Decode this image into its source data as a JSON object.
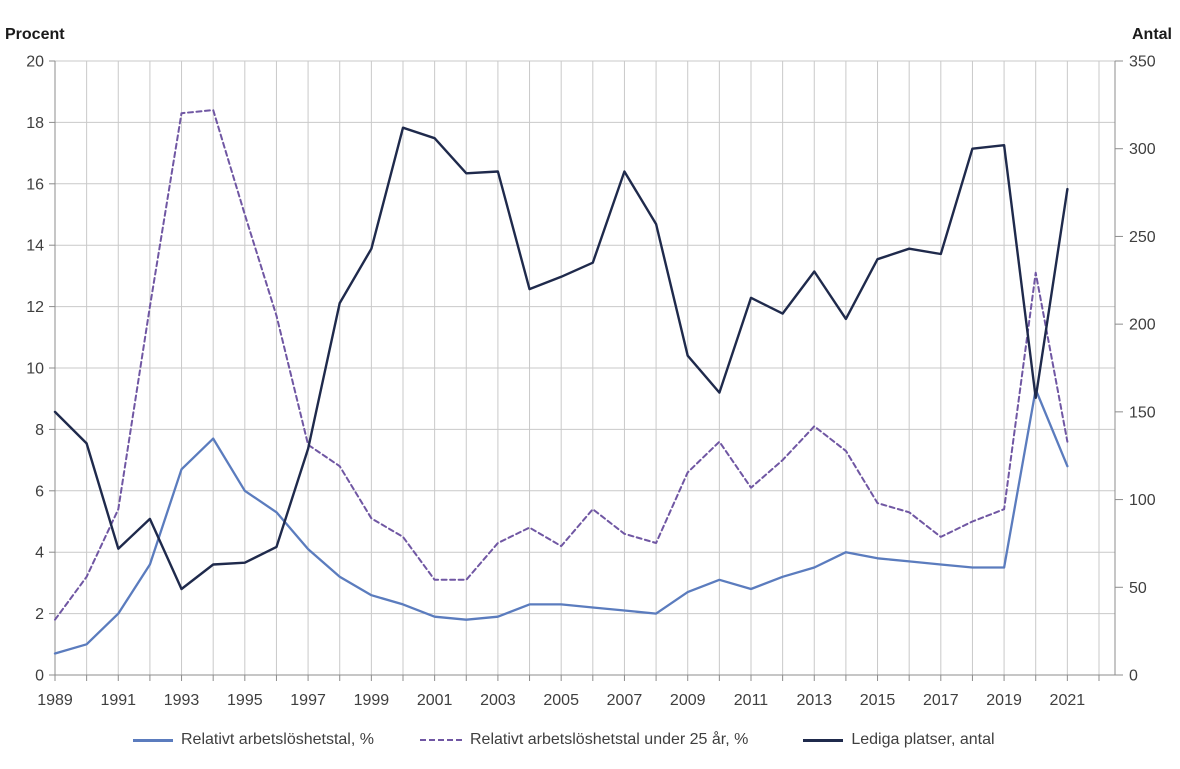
{
  "chart_data": {
    "type": "line",
    "title": "",
    "grid": true,
    "legend_position": "bottom",
    "colors": {
      "gridline": "#c9c9c9",
      "axis": "#8c8c8c",
      "tick_text": "#3f3f3f",
      "axis_title_text": "#1a1a1a"
    },
    "left_axis": {
      "label": "Procent",
      "min": 0,
      "max": 20,
      "tick_step": 2,
      "tick_labels": [
        20,
        18,
        16,
        14,
        12,
        10,
        8,
        6,
        4,
        2,
        0
      ]
    },
    "right_axis": {
      "label": "Antal",
      "min": 0,
      "max": 350,
      "tick_step": 50,
      "tick_labels": [
        350,
        300,
        250,
        200,
        150,
        100,
        50,
        0
      ]
    },
    "x_axis": {
      "years": [
        1989,
        1990,
        1991,
        1992,
        1993,
        1994,
        1995,
        1996,
        1997,
        1998,
        1999,
        2000,
        2001,
        2002,
        2003,
        2004,
        2005,
        2006,
        2007,
        2008,
        2009,
        2010,
        2011,
        2012,
        2013,
        2014,
        2015,
        2016,
        2017,
        2018,
        2019,
        2020,
        2021
      ],
      "labeled_years": [
        1989,
        1991,
        1993,
        1995,
        1997,
        1999,
        2001,
        2003,
        2005,
        2007,
        2009,
        2011,
        2013,
        2015,
        2017,
        2019,
        2021
      ]
    },
    "series": [
      {
        "name": "Relativt arbetslöshetstal, %",
        "axis": "left",
        "style": "solid",
        "color": "#5b7cbe",
        "values": [
          0.7,
          1.0,
          2.0,
          3.6,
          6.7,
          7.7,
          6.0,
          5.3,
          4.1,
          3.2,
          2.6,
          2.3,
          1.9,
          1.8,
          1.9,
          2.3,
          2.3,
          2.2,
          2.1,
          2.0,
          2.7,
          3.1,
          2.8,
          3.2,
          3.5,
          4.0,
          3.8,
          3.7,
          3.6,
          3.5,
          3.5,
          9.3,
          6.8
        ]
      },
      {
        "name": "Relativt arbetslöshetstal under 25 år, %",
        "axis": "left",
        "style": "dashed",
        "color": "#7057a3",
        "values": [
          1.8,
          3.2,
          5.4,
          12.0,
          18.3,
          18.4,
          15.0,
          11.7,
          7.5,
          6.8,
          5.1,
          4.5,
          3.1,
          3.1,
          4.3,
          4.8,
          4.2,
          5.4,
          4.6,
          4.3,
          6.6,
          7.6,
          6.1,
          7.0,
          8.1,
          7.3,
          5.6,
          5.3,
          4.5,
          5.0,
          5.4,
          13.1,
          7.6
        ]
      },
      {
        "name": "Lediga platser, antal",
        "axis": "right",
        "style": "solid",
        "color": "#1f2a4c",
        "values": [
          150,
          132,
          72,
          89,
          49,
          63,
          64,
          73,
          129,
          212,
          243,
          312,
          306,
          286,
          287,
          220,
          227,
          235,
          287,
          257,
          182,
          161,
          215,
          206,
          230,
          203,
          237,
          243,
          240,
          300,
          302,
          158,
          277
        ]
      }
    ]
  }
}
